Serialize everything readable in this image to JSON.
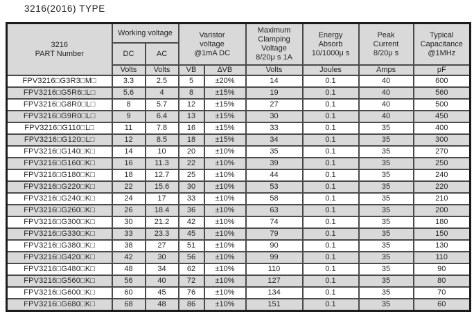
{
  "title": "3216(2016) TYPE",
  "colors": {
    "header_bg": "#d9d9d9",
    "row_alt_bg": "#d9d9d9",
    "row_bg": "#ffffff",
    "grid_line": "#4a4a4a",
    "outer_border": "#1c1c1c",
    "text": "#242424"
  },
  "table": {
    "headers": {
      "part_number": "3216\nPART Number",
      "working_voltage": "Working voltage",
      "dc": "DC",
      "ac": "AC",
      "varistor_voltage": "Varistor\nvoltage\n@1mA DC",
      "max_clamping": "Maximum\nClamping\nVoltage\n8/20μ s 1A",
      "energy_absorb": "Energy\nAbsorb\n10/1000μ s",
      "peak_current": "Peak\nCurrent\n8/20μ s",
      "typical_capacitance": "Typical\nCapacitance\n@1MHz"
    },
    "units": [
      "Volts",
      "Volts",
      "VB",
      "∆VB",
      "Volts",
      "Joules",
      "Amps",
      "pF"
    ],
    "column_cell_names": [
      "cell-part-number",
      "cell-dc-volts",
      "cell-ac-volts",
      "cell-vb",
      "cell-delta-vb",
      "cell-clamping-volts",
      "cell-energy-joules",
      "cell-peak-amps",
      "cell-capacitance-pf"
    ],
    "rows": [
      [
        "FPV3216□G3R3□M□",
        "3.3",
        "2.5",
        "5",
        "±20%",
        "14",
        "0.1",
        "40",
        "600"
      ],
      [
        "FPV3216□G5R6□L□",
        "5.6",
        "4",
        "8",
        "±15%",
        "19",
        "0.1",
        "40",
        "560"
      ],
      [
        "FPV3216□G8R0□L□",
        "8",
        "5.7",
        "12",
        "±15%",
        "27",
        "0.1",
        "40",
        "500"
      ],
      [
        "FPV3216□G9R0□L□",
        "9",
        "6.4",
        "13",
        "±15%",
        "30",
        "0.1",
        "40",
        "450"
      ],
      [
        "FPV3216□G110□L□",
        "11",
        "7.8",
        "16",
        "±15%",
        "33",
        "0.1",
        "35",
        "400"
      ],
      [
        "FPV3216□G120□L□",
        "12",
        "8.5",
        "18",
        "±15%",
        "34",
        "0.1",
        "35",
        "300"
      ],
      [
        "FPV3216□G140□K□",
        "14",
        "10",
        "20",
        "±10%",
        "35",
        "0.1",
        "35",
        "270"
      ],
      [
        "FPV3216□G160□K□",
        "16",
        "11.3",
        "22",
        "±10%",
        "39",
        "0.1",
        "35",
        "250"
      ],
      [
        "FPV3216□G180□K□",
        "18",
        "12.7",
        "25",
        "±10%",
        "44",
        "0.1",
        "35",
        "240"
      ],
      [
        "FPV3216□G220□K□",
        "22",
        "15.6",
        "30",
        "±10%",
        "53",
        "0.1",
        "35",
        "220"
      ],
      [
        "FPV3216□G240□K□",
        "24",
        "17",
        "33",
        "±10%",
        "58",
        "0.1",
        "35",
        "210"
      ],
      [
        "FPV3216□G260□K□",
        "26",
        "18.4",
        "36",
        "±10%",
        "63",
        "0.1",
        "35",
        "200"
      ],
      [
        "FPV3216□G300□K□",
        "30",
        "21.2",
        "42",
        "±10%",
        "74",
        "0.1",
        "35",
        "180"
      ],
      [
        "FPV3216□G330□K□",
        "33",
        "23.3",
        "45",
        "±10%",
        "79",
        "0.1",
        "35",
        "150"
      ],
      [
        "FPV3216□G380□K□",
        "38",
        "27",
        "51",
        "±10%",
        "90",
        "0.1",
        "35",
        "130"
      ],
      [
        "FPV3216□G420□K□",
        "42",
        "30",
        "56",
        "±10%",
        "99",
        "0.1",
        "35",
        "110"
      ],
      [
        "FPV3216□G480□K□",
        "48",
        "34",
        "62",
        "±10%",
        "110",
        "0.1",
        "35",
        "90"
      ],
      [
        "FPV3216□G560□K□",
        "56",
        "40",
        "72",
        "±10%",
        "127",
        "0.1",
        "35",
        "80"
      ],
      [
        "FPV3216□G600□K□",
        "60",
        "45",
        "76",
        "±10%",
        "134",
        "0.1",
        "35",
        "70"
      ],
      [
        "FPV3216□G680□K□",
        "68",
        "48",
        "86",
        "±10%",
        "151",
        "0.1",
        "35",
        "60"
      ]
    ]
  }
}
